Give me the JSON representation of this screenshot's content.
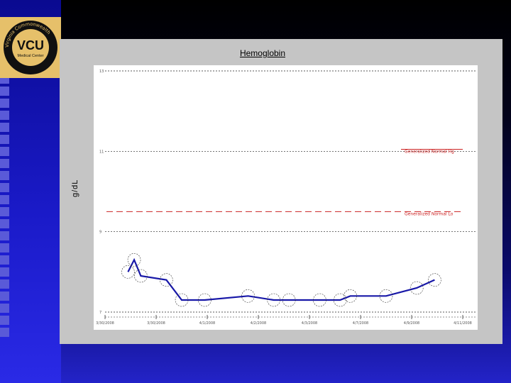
{
  "chart_data": {
    "type": "line",
    "title": "Hemoglobin",
    "ylabel": "g/dL",
    "xlabel": "",
    "ylim": [
      7,
      13
    ],
    "yticks": [
      7,
      9,
      11,
      13
    ],
    "ytick_labels": [
      "7",
      "9",
      "11",
      "13"
    ],
    "xlim": [
      0,
      7
    ],
    "xticks": [
      0,
      1,
      2,
      3,
      4,
      5,
      6,
      7
    ],
    "xtick_labels": [
      "3/30/2008",
      "3/30/2008",
      "4/1/2008",
      "4/2/2008",
      "4/3/2008",
      "4/7/2008",
      "4/9/2008",
      "4/11/2008"
    ],
    "grid": "dashed-horizontal",
    "series": [
      {
        "name": "Hemoglobin",
        "color": "#1818a8",
        "x": [
          0.45,
          0.57,
          0.7,
          1.2,
          1.5,
          1.95,
          2.8,
          3.3,
          3.6,
          4.2,
          4.6,
          4.8,
          5.5,
          6.1,
          6.45
        ],
        "y": [
          8.0,
          8.3,
          7.9,
          7.8,
          7.3,
          7.3,
          7.4,
          7.3,
          7.3,
          7.3,
          7.3,
          7.4,
          7.4,
          7.6,
          7.8
        ]
      }
    ],
    "reference_lines": [
      {
        "label": "Generalized Normal Hg",
        "y": 11.05,
        "color": "#cc2222",
        "style": "dashed"
      },
      {
        "label": "Generalized Normal Lo",
        "y": 9.5,
        "color": "#cc2222",
        "style": "dashed"
      }
    ]
  },
  "logo": {
    "text": "VCU",
    "subtitle": "Medical Center",
    "ring_top": "Virginia Commonwealth",
    "ring_bottom": "University"
  }
}
